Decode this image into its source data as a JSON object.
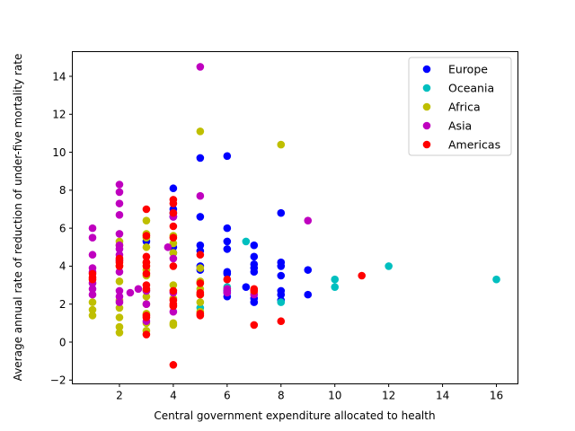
{
  "chart_data": {
    "type": "scatter",
    "title": "",
    "xlabel": "Central government expenditure allocated to health",
    "ylabel": "Average annual rate of reduction of under-five mortality rate",
    "xlim": [
      0.25,
      16.8
    ],
    "ylim": [
      -2.2,
      15.3
    ],
    "xticks": [
      2,
      4,
      6,
      8,
      10,
      12,
      14,
      16
    ],
    "yticks": [
      -2,
      0,
      2,
      4,
      6,
      8,
      10,
      12,
      14
    ],
    "grid": false,
    "legend_position": "top-right",
    "series": [
      {
        "name": "Europe",
        "color": "#0000ff",
        "points": [
          [
            3,
            5.3
          ],
          [
            4,
            8.1
          ],
          [
            4,
            7.0
          ],
          [
            4,
            6.8
          ],
          [
            4,
            6.6
          ],
          [
            4,
            5.0
          ],
          [
            4,
            4.7
          ],
          [
            5,
            9.7
          ],
          [
            5,
            6.6
          ],
          [
            5,
            5.1
          ],
          [
            5,
            4.8
          ],
          [
            5,
            4.0
          ],
          [
            5,
            3.8
          ],
          [
            6,
            9.8
          ],
          [
            6,
            6.0
          ],
          [
            6,
            5.3
          ],
          [
            6,
            4.9
          ],
          [
            6,
            3.7
          ],
          [
            6,
            3.6
          ],
          [
            6,
            2.7
          ],
          [
            6,
            2.6
          ],
          [
            6,
            2.4
          ],
          [
            6.7,
            2.9
          ],
          [
            7,
            5.1
          ],
          [
            7,
            4.5
          ],
          [
            7,
            4.1
          ],
          [
            7,
            3.9
          ],
          [
            7,
            3.7
          ],
          [
            7,
            2.3
          ],
          [
            7,
            2.1
          ],
          [
            8,
            6.8
          ],
          [
            8,
            4.2
          ],
          [
            8,
            4.0
          ],
          [
            8,
            3.5
          ],
          [
            8,
            2.7
          ],
          [
            8,
            2.5
          ],
          [
            8,
            2.2
          ],
          [
            9,
            3.8
          ],
          [
            9,
            2.5
          ]
        ]
      },
      {
        "name": "Oceania",
        "color": "#00bfbf",
        "points": [
          [
            5,
            1.8
          ],
          [
            6,
            2.9
          ],
          [
            6.7,
            5.3
          ],
          [
            8,
            2.1
          ],
          [
            10,
            3.3
          ],
          [
            10,
            2.9
          ],
          [
            12,
            4.0
          ],
          [
            16,
            3.3
          ]
        ]
      },
      {
        "name": "Africa",
        "color": "#bfbf00",
        "points": [
          [
            1,
            2.1
          ],
          [
            1,
            1.7
          ],
          [
            1,
            1.4
          ],
          [
            2,
            5.3
          ],
          [
            2,
            5.1
          ],
          [
            2,
            4.3
          ],
          [
            2,
            4.0
          ],
          [
            2,
            3.2
          ],
          [
            2,
            2.2
          ],
          [
            2,
            1.8
          ],
          [
            2,
            1.3
          ],
          [
            2,
            0.8
          ],
          [
            2,
            0.5
          ],
          [
            3,
            6.4
          ],
          [
            3,
            5.7
          ],
          [
            3,
            5.5
          ],
          [
            3,
            5.0
          ],
          [
            3,
            4.2
          ],
          [
            3,
            3.8
          ],
          [
            3,
            3.5
          ],
          [
            3,
            2.7
          ],
          [
            3,
            2.4
          ],
          [
            3,
            2.0
          ],
          [
            3,
            1.5
          ],
          [
            3,
            1.0
          ],
          [
            3,
            0.6
          ],
          [
            4,
            5.6
          ],
          [
            4,
            5.2
          ],
          [
            4,
            4.7
          ],
          [
            4,
            3.0
          ],
          [
            4,
            2.3
          ],
          [
            4,
            1.9
          ],
          [
            4,
            1.0
          ],
          [
            4,
            0.9
          ],
          [
            5,
            11.1
          ],
          [
            5,
            3.9
          ],
          [
            5,
            3.2
          ],
          [
            5,
            2.8
          ],
          [
            5,
            2.5
          ],
          [
            5,
            2.1
          ],
          [
            5,
            1.6
          ],
          [
            6,
            2.8
          ],
          [
            7,
            2.6
          ],
          [
            8,
            10.4
          ]
        ]
      },
      {
        "name": "Asia",
        "color": "#bf00bf",
        "points": [
          [
            1,
            6.0
          ],
          [
            1,
            5.5
          ],
          [
            1,
            4.6
          ],
          [
            1,
            3.9
          ],
          [
            1,
            3.7
          ],
          [
            1,
            3.1
          ],
          [
            1,
            2.8
          ],
          [
            1,
            2.5
          ],
          [
            2,
            8.3
          ],
          [
            2,
            7.9
          ],
          [
            2,
            7.3
          ],
          [
            2,
            6.7
          ],
          [
            2,
            5.7
          ],
          [
            2,
            5.1
          ],
          [
            2,
            4.9
          ],
          [
            2,
            4.6
          ],
          [
            2,
            4.3
          ],
          [
            2,
            3.7
          ],
          [
            2,
            2.7
          ],
          [
            2,
            2.4
          ],
          [
            2,
            2.1
          ],
          [
            2.4,
            2.6
          ],
          [
            2.7,
            2.8
          ],
          [
            3,
            2.7
          ],
          [
            3,
            2.0
          ],
          [
            3,
            1.1
          ],
          [
            3.8,
            5.0
          ],
          [
            4,
            6.6
          ],
          [
            4,
            4.4
          ],
          [
            4,
            2.6
          ],
          [
            4,
            1.6
          ],
          [
            5,
            14.5
          ],
          [
            5,
            7.7
          ],
          [
            6,
            2.8
          ],
          [
            6,
            2.6
          ],
          [
            7,
            2.5
          ],
          [
            9,
            6.4
          ]
        ]
      },
      {
        "name": "Americas",
        "color": "#ff0000",
        "points": [
          [
            1,
            3.6
          ],
          [
            1,
            3.4
          ],
          [
            1,
            3.3
          ],
          [
            2,
            4.4
          ],
          [
            2,
            4.2
          ],
          [
            2,
            4.0
          ],
          [
            3,
            7.0
          ],
          [
            3,
            5.6
          ],
          [
            3,
            4.5
          ],
          [
            3,
            4.2
          ],
          [
            3,
            4.0
          ],
          [
            3,
            3.6
          ],
          [
            3,
            3.0
          ],
          [
            3,
            2.8
          ],
          [
            3,
            1.4
          ],
          [
            3,
            1.3
          ],
          [
            3,
            0.4
          ],
          [
            4,
            7.5
          ],
          [
            4,
            7.3
          ],
          [
            4,
            6.8
          ],
          [
            4,
            6.1
          ],
          [
            4,
            5.5
          ],
          [
            4,
            4.0
          ],
          [
            4,
            2.7
          ],
          [
            4,
            2.2
          ],
          [
            4,
            2.0
          ],
          [
            4,
            1.9
          ],
          [
            4,
            -1.2
          ],
          [
            5,
            4.6
          ],
          [
            5,
            3.1
          ],
          [
            5,
            2.6
          ],
          [
            5,
            2.5
          ],
          [
            5,
            1.5
          ],
          [
            5,
            1.4
          ],
          [
            6,
            3.3
          ],
          [
            7,
            2.8
          ],
          [
            7,
            2.7
          ],
          [
            7,
            0.9
          ],
          [
            8,
            1.1
          ],
          [
            11,
            3.5
          ]
        ]
      }
    ]
  }
}
